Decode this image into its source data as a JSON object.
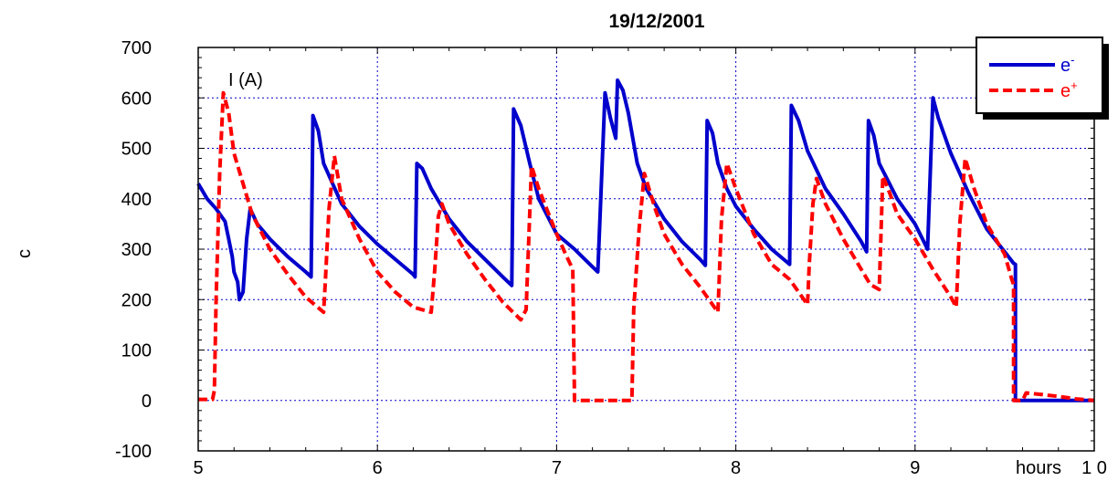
{
  "chart_data": {
    "type": "line",
    "title": "19/12/2001",
    "xlabel": "hours",
    "ylabel": "c",
    "annotation": "I  (A)",
    "xlim": [
      5,
      10
    ],
    "ylim": [
      -100,
      700
    ],
    "x_ticks": [
      "5",
      "6",
      "7",
      "8",
      "9",
      "1 0"
    ],
    "y_ticks": [
      "-100",
      "0",
      "100",
      "200",
      "300",
      "400",
      "500",
      "600",
      "700"
    ],
    "grid": true,
    "legend_position": "top-right",
    "series": [
      {
        "name": "e-",
        "legend_label": "e",
        "legend_sup": "-",
        "color": "#0000cc",
        "style": "solid",
        "points": [
          [
            5.0,
            430
          ],
          [
            5.05,
            400
          ],
          [
            5.1,
            380
          ],
          [
            5.15,
            355
          ],
          [
            5.17,
            320
          ],
          [
            5.19,
            285
          ],
          [
            5.2,
            255
          ],
          [
            5.22,
            235
          ],
          [
            5.23,
            200
          ],
          [
            5.25,
            215
          ],
          [
            5.27,
            320
          ],
          [
            5.29,
            380
          ],
          [
            5.33,
            350
          ],
          [
            5.4,
            320
          ],
          [
            5.5,
            285
          ],
          [
            5.6,
            255
          ],
          [
            5.63,
            245
          ],
          [
            5.64,
            565
          ],
          [
            5.67,
            535
          ],
          [
            5.7,
            470
          ],
          [
            5.8,
            390
          ],
          [
            5.9,
            345
          ],
          [
            6.0,
            310
          ],
          [
            6.1,
            280
          ],
          [
            6.2,
            250
          ],
          [
            6.21,
            245
          ],
          [
            6.22,
            470
          ],
          [
            6.25,
            460
          ],
          [
            6.3,
            420
          ],
          [
            6.4,
            360
          ],
          [
            6.5,
            315
          ],
          [
            6.6,
            280
          ],
          [
            6.7,
            245
          ],
          [
            6.75,
            228
          ],
          [
            6.76,
            578
          ],
          [
            6.8,
            545
          ],
          [
            6.85,
            470
          ],
          [
            6.9,
            400
          ],
          [
            7.0,
            330
          ],
          [
            7.1,
            300
          ],
          [
            7.2,
            265
          ],
          [
            7.23,
            255
          ],
          [
            7.27,
            610
          ],
          [
            7.3,
            560
          ],
          [
            7.33,
            520
          ],
          [
            7.34,
            635
          ],
          [
            7.37,
            615
          ],
          [
            7.4,
            570
          ],
          [
            7.45,
            470
          ],
          [
            7.5,
            420
          ],
          [
            7.6,
            360
          ],
          [
            7.7,
            315
          ],
          [
            7.8,
            280
          ],
          [
            7.83,
            268
          ],
          [
            7.84,
            555
          ],
          [
            7.87,
            530
          ],
          [
            7.9,
            470
          ],
          [
            7.95,
            420
          ],
          [
            8.0,
            385
          ],
          [
            8.1,
            340
          ],
          [
            8.2,
            300
          ],
          [
            8.3,
            270
          ],
          [
            8.31,
            585
          ],
          [
            8.35,
            555
          ],
          [
            8.4,
            495
          ],
          [
            8.5,
            420
          ],
          [
            8.6,
            370
          ],
          [
            8.7,
            315
          ],
          [
            8.73,
            295
          ],
          [
            8.74,
            555
          ],
          [
            8.77,
            525
          ],
          [
            8.8,
            470
          ],
          [
            8.85,
            435
          ],
          [
            8.9,
            400
          ],
          [
            9.0,
            350
          ],
          [
            9.07,
            300
          ],
          [
            9.1,
            600
          ],
          [
            9.13,
            560
          ],
          [
            9.2,
            490
          ],
          [
            9.3,
            410
          ],
          [
            9.4,
            340
          ],
          [
            9.5,
            295
          ],
          [
            9.55,
            272
          ],
          [
            9.56,
            270
          ],
          [
            9.56,
            0
          ],
          [
            10.0,
            0
          ]
        ]
      },
      {
        "name": "e+",
        "legend_label": "e",
        "legend_sup": "+",
        "color": "#ff0000",
        "style": "dashed",
        "points": [
          [
            5.0,
            2
          ],
          [
            5.08,
            2
          ],
          [
            5.09,
            20
          ],
          [
            5.1,
            200
          ],
          [
            5.12,
            450
          ],
          [
            5.14,
            610
          ],
          [
            5.17,
            570
          ],
          [
            5.2,
            490
          ],
          [
            5.25,
            430
          ],
          [
            5.3,
            370
          ],
          [
            5.4,
            300
          ],
          [
            5.5,
            250
          ],
          [
            5.6,
            205
          ],
          [
            5.7,
            175
          ],
          [
            5.71,
            240
          ],
          [
            5.73,
            380
          ],
          [
            5.76,
            485
          ],
          [
            5.8,
            400
          ],
          [
            5.9,
            320
          ],
          [
            6.0,
            255
          ],
          [
            6.1,
            215
          ],
          [
            6.2,
            185
          ],
          [
            6.3,
            175
          ],
          [
            6.32,
            260
          ],
          [
            6.34,
            365
          ],
          [
            6.36,
            390
          ],
          [
            6.4,
            350
          ],
          [
            6.5,
            290
          ],
          [
            6.6,
            240
          ],
          [
            6.7,
            195
          ],
          [
            6.8,
            160
          ],
          [
            6.83,
            180
          ],
          [
            6.86,
            465
          ],
          [
            6.9,
            420
          ],
          [
            7.0,
            330
          ],
          [
            7.05,
            290
          ],
          [
            7.09,
            260
          ],
          [
            7.1,
            0
          ],
          [
            7.42,
            0
          ],
          [
            7.43,
            180
          ],
          [
            7.46,
            340
          ],
          [
            7.49,
            450
          ],
          [
            7.55,
            380
          ],
          [
            7.6,
            330
          ],
          [
            7.7,
            270
          ],
          [
            7.8,
            225
          ],
          [
            7.9,
            175
          ],
          [
            7.92,
            360
          ],
          [
            7.95,
            470
          ],
          [
            8.0,
            420
          ],
          [
            8.1,
            330
          ],
          [
            8.2,
            270
          ],
          [
            8.3,
            240
          ],
          [
            8.4,
            190
          ],
          [
            8.41,
            270
          ],
          [
            8.43,
            390
          ],
          [
            8.45,
            440
          ],
          [
            8.5,
            390
          ],
          [
            8.6,
            320
          ],
          [
            8.7,
            260
          ],
          [
            8.75,
            230
          ],
          [
            8.8,
            220
          ],
          [
            8.82,
            445
          ],
          [
            8.86,
            410
          ],
          [
            8.9,
            370
          ],
          [
            9.0,
            320
          ],
          [
            9.1,
            260
          ],
          [
            9.2,
            205
          ],
          [
            9.23,
            185
          ],
          [
            9.25,
            350
          ],
          [
            9.28,
            480
          ],
          [
            9.33,
            420
          ],
          [
            9.4,
            350
          ],
          [
            9.5,
            290
          ],
          [
            9.54,
            240
          ],
          [
            9.55,
            230
          ],
          [
            9.55,
            0
          ],
          [
            9.6,
            0
          ],
          [
            9.62,
            15
          ],
          [
            9.7,
            12
          ],
          [
            9.8,
            8
          ],
          [
            9.9,
            3
          ],
          [
            10.0,
            0
          ]
        ]
      }
    ]
  }
}
